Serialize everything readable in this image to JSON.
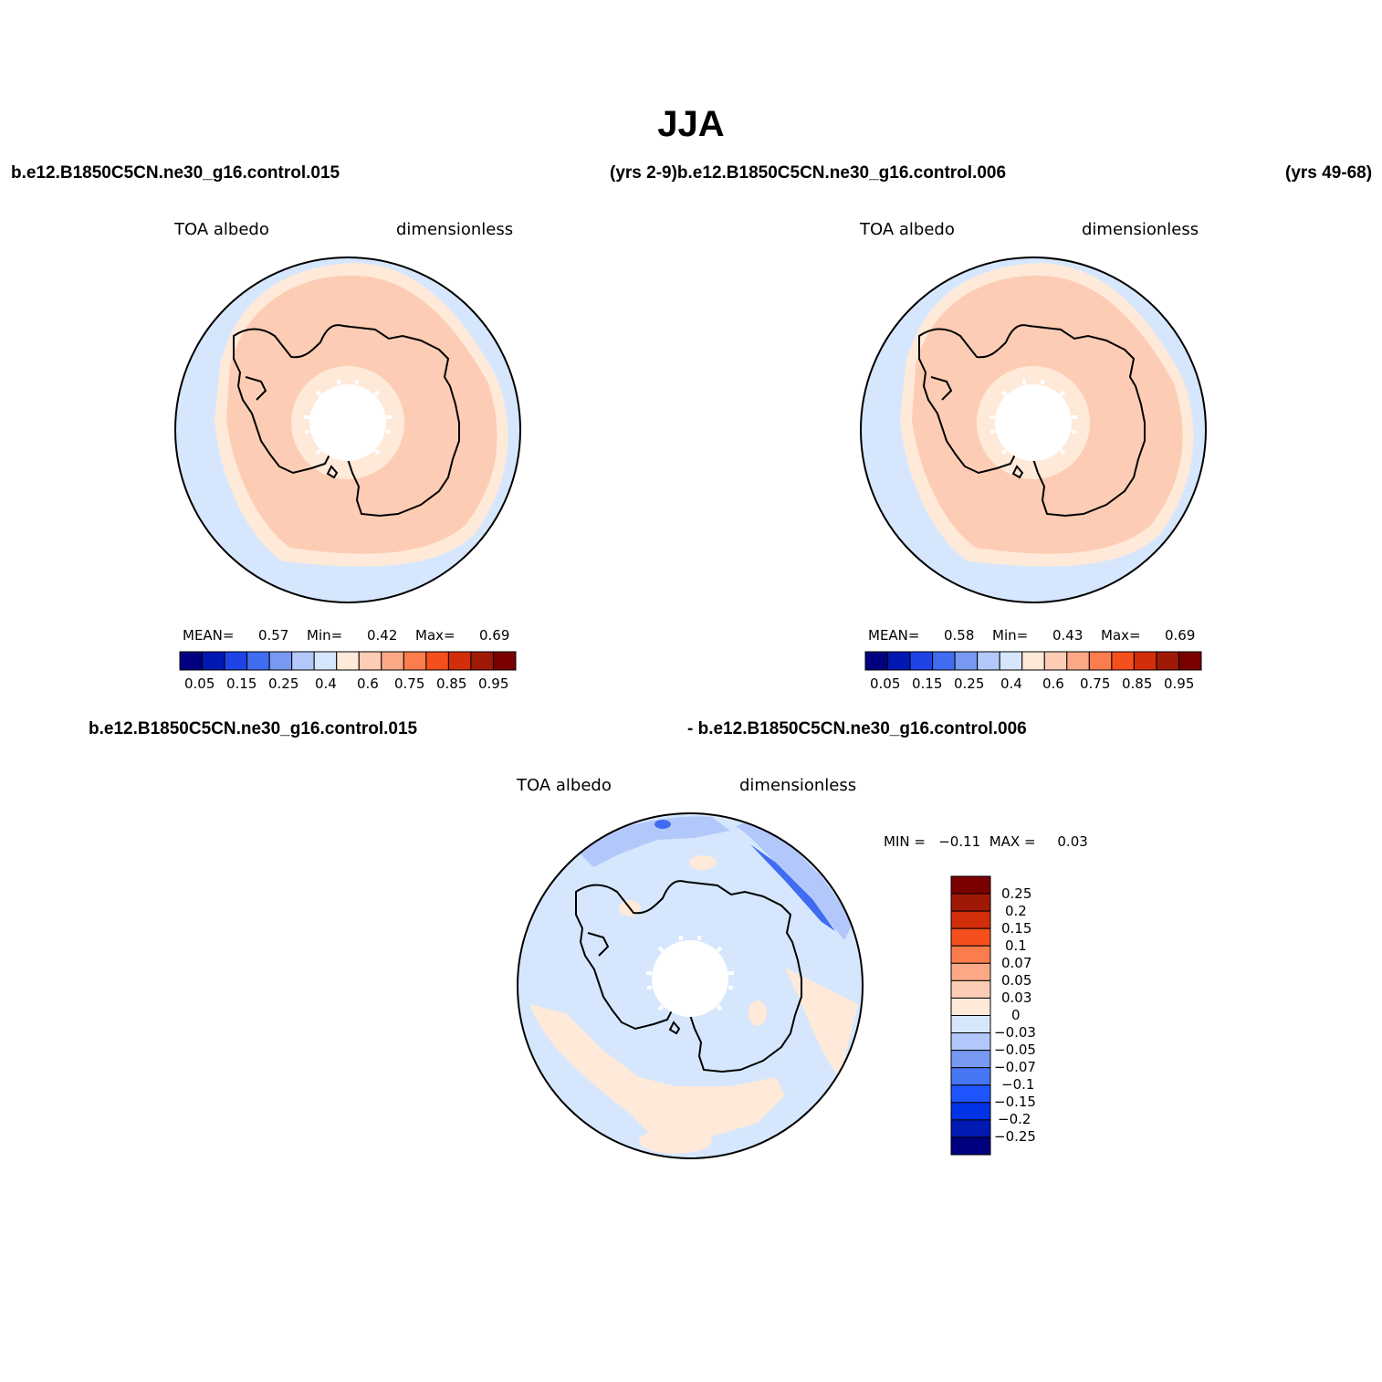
{
  "season_title": "JJA",
  "colors": {
    "abs_palette": [
      "#000080",
      "#0019b3",
      "#1f43e6",
      "#3f6cf0",
      "#7799f2",
      "#b3c8fa",
      "#d6e7fd",
      "#ffe9d9",
      "#fccdb4",
      "#fca886",
      "#fb7c4d",
      "#f44f1c",
      "#d22e0b",
      "#9f1906",
      "#7a0000"
    ],
    "diff_palette": [
      "#000080",
      "#0019b3",
      "#0033e6",
      "#1f55ff",
      "#4678f5",
      "#7799f2",
      "#b3c8fa",
      "#d6e7fd",
      "#ffe9d9",
      "#fccdb4",
      "#fca886",
      "#fb7c4d",
      "#f44f1c",
      "#d22e0b",
      "#9f1906",
      "#7a0000"
    ],
    "ocean_fill": "#d6e7fd",
    "ice_fill": "#fccdb4",
    "edge_fill": "#ffe9d9",
    "coast": "#000000"
  },
  "header": {
    "left_case": "b.e12.B1850C5CN.ne30_g16.control.015",
    "middle": "(yrs 2-9)b.e12.B1850C5CN.ne30_g16.control.006",
    "right_fragment": "(yrs 49-68)"
  },
  "panels": [
    {
      "variable": "TOA albedo",
      "units": "dimensionless",
      "stats": {
        "mean_label": "MEAN=",
        "mean": "0.57",
        "min_label": "Min=",
        "min": "0.42",
        "max_label": "Max=",
        "max": "0.69"
      },
      "colorbar_labels": [
        "0.05",
        "0.15",
        "0.25",
        "0.4",
        "0.6",
        "0.75",
        "0.85",
        "0.95"
      ]
    },
    {
      "variable": "TOA albedo",
      "units": "dimensionless",
      "stats": {
        "mean_label": "MEAN=",
        "mean": "0.58",
        "min_label": "Min=",
        "min": "0.43",
        "max_label": "Max=",
        "max": "0.69"
      },
      "colorbar_labels": [
        "0.05",
        "0.15",
        "0.25",
        "0.4",
        "0.6",
        "0.75",
        "0.85",
        "0.95"
      ]
    }
  ],
  "difference": {
    "left_case": "b.e12.B1850C5CN.ne30_g16.control.015",
    "right_case": "- b.e12.B1850C5CN.ne30_g16.control.006",
    "variable": "TOA albedo",
    "units": "dimensionless",
    "min_max_text": "MIN =   −0.11  MAX =     0.03",
    "colorbar_labels": [
      "0.25",
      "0.2",
      "0.15",
      "0.1",
      "0.07",
      "0.05",
      "0.03",
      "0",
      "−0.03",
      "−0.05",
      "−0.07",
      "−0.1",
      "−0.15",
      "−0.2",
      "−0.25"
    ]
  }
}
